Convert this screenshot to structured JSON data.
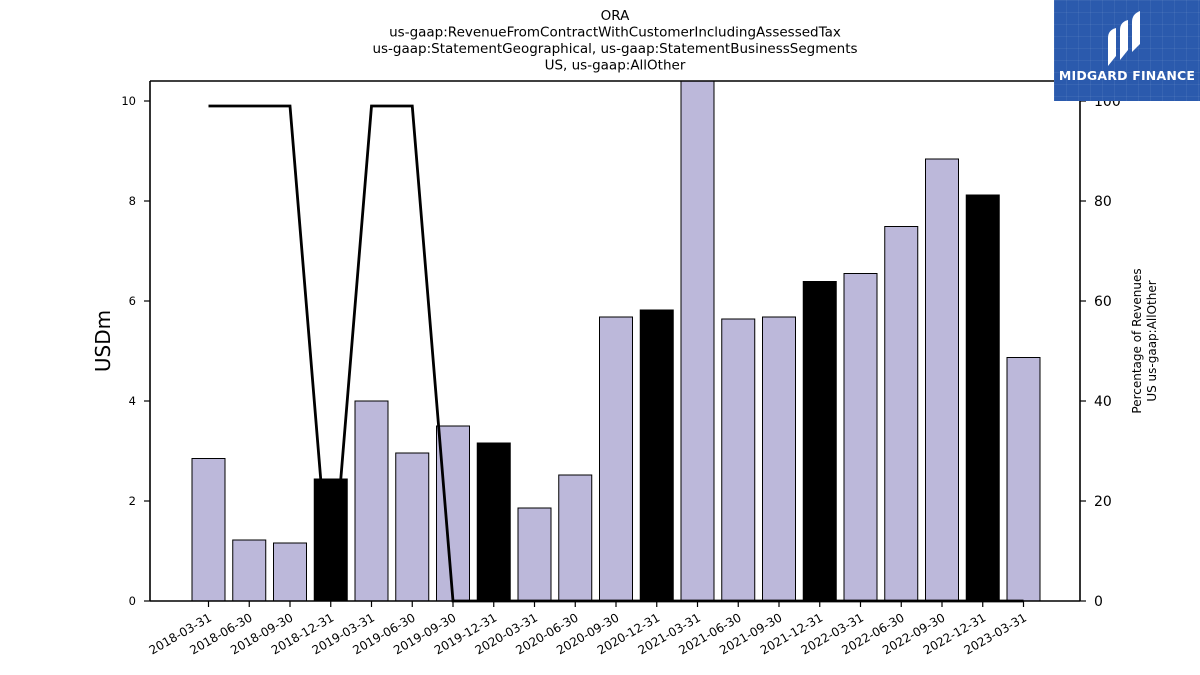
{
  "logo": {
    "text": "MIDGARD FINANCE"
  },
  "chart_data": {
    "type": "bar",
    "title_lines": [
      "ORA",
      "us-gaap:RevenueFromContractWithCustomerIncludingAssessedTax",
      "us-gaap:StatementGeographical, us-gaap:StatementBusinessSegments",
      "US, us-gaap:AllOther"
    ],
    "ylabel": "USDm",
    "y2label_lines": [
      "Percentage of Revenues",
      "US us-gaap:AllOther"
    ],
    "ylim": [
      0,
      10.4
    ],
    "y2lim": [
      0,
      104
    ],
    "yticks": [
      0,
      2,
      4,
      6,
      8,
      10
    ],
    "y2ticks": [
      0,
      20,
      40,
      60,
      80,
      100
    ],
    "categories": [
      "2018-03-31",
      "2018-06-30",
      "2018-09-30",
      "2018-12-31",
      "2019-03-31",
      "2019-06-30",
      "2019-09-30",
      "2019-12-31",
      "2020-03-31",
      "2020-06-30",
      "2020-09-30",
      "2020-12-31",
      "2021-03-31",
      "2021-06-30",
      "2021-09-30",
      "2021-12-31",
      "2022-03-31",
      "2022-06-30",
      "2022-09-30",
      "2022-12-31",
      "2023-03-31"
    ],
    "series": [
      {
        "type": "bar",
        "values": [
          2.85,
          1.22,
          1.16,
          2.44,
          4.0,
          2.96,
          3.5,
          3.16,
          1.86,
          2.52,
          5.68,
          5.82,
          10.4,
          5.64,
          5.68,
          6.39,
          6.55,
          7.49,
          8.84,
          8.12,
          4.87
        ],
        "colors": [
          "#bcb8da",
          "#bcb8da",
          "#bcb8da",
          "#000000",
          "#bcb8da",
          "#bcb8da",
          "#bcb8da",
          "#000000",
          "#bcb8da",
          "#bcb8da",
          "#bcb8da",
          "#000000",
          "#bcb8da",
          "#bcb8da",
          "#bcb8da",
          "#000000",
          "#bcb8da",
          "#bcb8da",
          "#bcb8da",
          "#000000",
          "#bcb8da"
        ]
      },
      {
        "type": "line",
        "axis": "right",
        "values": [
          99,
          99,
          99,
          0,
          99,
          99,
          0,
          0,
          0,
          0,
          0,
          0,
          0,
          0,
          0,
          0,
          0,
          0,
          0,
          0,
          0
        ],
        "color": "#000000"
      }
    ],
    "bar_color": "#bcb8da",
    "highlight_color": "#000000",
    "grid": false
  }
}
